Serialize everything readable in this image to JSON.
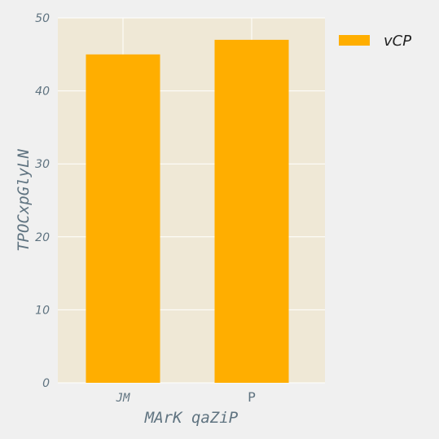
{
  "chart_data": {
    "type": "bar",
    "categories": [
      "JM",
      "P"
    ],
    "series": [
      {
        "name": "vCP",
        "values": [
          45,
          47
        ],
        "color": "#ffae00"
      }
    ],
    "title": "",
    "xlabel": "MArK qaZiP",
    "ylabel": "TPOCxpGlyLN",
    "ylim": [
      0,
      50
    ],
    "yticks": [
      0,
      10,
      20,
      30,
      40,
      50
    ],
    "yticklabels": [
      "0",
      "10",
      "20",
      "30",
      "40",
      "50"
    ],
    "grid": true,
    "legend_position": "outside-top-right",
    "plot_background": "#efe8d6",
    "grid_color": "#ffffff"
  }
}
